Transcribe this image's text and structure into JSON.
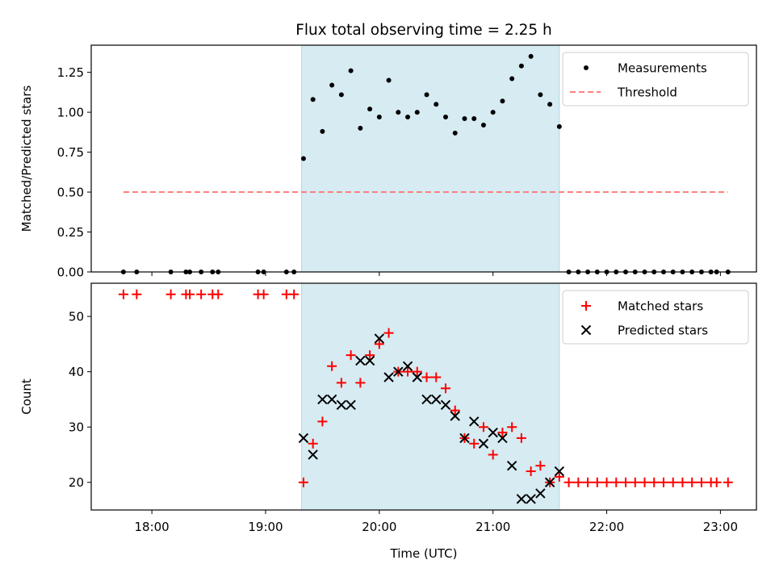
{
  "title": "Flux total observing time = 2.25 h",
  "xlabel": "Time (UTC)",
  "x_ticks": [
    "18:00",
    "19:00",
    "20:00",
    "21:00",
    "22:00",
    "23:00"
  ],
  "observing_window": {
    "start": "19:19",
    "end": "21:35",
    "color": "#add8e6"
  },
  "chart_data": [
    {
      "type": "scatter",
      "ylabel": "Matched/Predicted stars",
      "xlim": [
        "17:28",
        "23:19"
      ],
      "ylim": [
        0,
        1.42
      ],
      "y_ticks": [
        "0.00",
        "0.25",
        "0.50",
        "0.75",
        "1.00",
        "1.25"
      ],
      "legend": {
        "position": "top-right",
        "entries": [
          "Measurements",
          "Threshold"
        ]
      },
      "series": [
        {
          "name": "Measurements",
          "color": "#000000",
          "marker": "dot",
          "points": [
            [
              "17:45",
              0
            ],
            [
              "17:52",
              0
            ],
            [
              "18:10",
              0
            ],
            [
              "18:18",
              0
            ],
            [
              "18:20",
              0
            ],
            [
              "18:26",
              0
            ],
            [
              "18:32",
              0
            ],
            [
              "18:35",
              0
            ],
            [
              "18:56",
              0
            ],
            [
              "18:59",
              0
            ],
            [
              "19:11",
              0
            ],
            [
              "19:15",
              0
            ],
            [
              "19:20",
              0.71
            ],
            [
              "19:25",
              1.08
            ],
            [
              "19:30",
              0.88
            ],
            [
              "19:35",
              1.17
            ],
            [
              "19:40",
              1.11
            ],
            [
              "19:45",
              1.26
            ],
            [
              "19:50",
              0.9
            ],
            [
              "19:55",
              1.02
            ],
            [
              "20:00",
              0.97
            ],
            [
              "20:05",
              1.2
            ],
            [
              "20:10",
              1.0
            ],
            [
              "20:15",
              0.97
            ],
            [
              "20:20",
              1.0
            ],
            [
              "20:25",
              1.11
            ],
            [
              "20:30",
              1.05
            ],
            [
              "20:35",
              0.97
            ],
            [
              "20:40",
              0.87
            ],
            [
              "20:45",
              0.96
            ],
            [
              "20:50",
              0.96
            ],
            [
              "20:55",
              0.92
            ],
            [
              "21:00",
              1.0
            ],
            [
              "21:05",
              1.07
            ],
            [
              "21:10",
              1.21
            ],
            [
              "21:15",
              1.29
            ],
            [
              "21:20",
              1.35
            ],
            [
              "21:25",
              1.11
            ],
            [
              "21:30",
              1.05
            ],
            [
              "21:35",
              0.91
            ],
            [
              "21:40",
              0
            ],
            [
              "21:45",
              0
            ],
            [
              "21:50",
              0
            ],
            [
              "21:55",
              0
            ],
            [
              "22:00",
              0
            ],
            [
              "22:05",
              0
            ],
            [
              "22:10",
              0
            ],
            [
              "22:15",
              0
            ],
            [
              "22:20",
              0
            ],
            [
              "22:25",
              0
            ],
            [
              "22:30",
              0
            ],
            [
              "22:35",
              0
            ],
            [
              "22:40",
              0
            ],
            [
              "22:45",
              0
            ],
            [
              "22:50",
              0
            ],
            [
              "22:55",
              0
            ],
            [
              "22:58",
              0
            ],
            [
              "23:04",
              0
            ]
          ]
        },
        {
          "name": "Threshold",
          "color": "#ff7f7f",
          "style": "dashed",
          "points": [
            [
              "17:45",
              0.5
            ],
            [
              "23:04",
              0.5
            ]
          ]
        }
      ]
    },
    {
      "type": "scatter",
      "ylabel": "Count",
      "xlim": [
        "17:28",
        "23:19"
      ],
      "ylim": [
        15,
        56
      ],
      "y_ticks": [
        "20",
        "30",
        "40",
        "50"
      ],
      "legend": {
        "position": "top-right",
        "entries": [
          "Matched stars",
          "Predicted stars"
        ]
      },
      "series": [
        {
          "name": "Matched stars",
          "color": "#ff0000",
          "marker": "plus",
          "points": [
            [
              "17:45",
              54
            ],
            [
              "17:52",
              54
            ],
            [
              "18:10",
              54
            ],
            [
              "18:18",
              54
            ],
            [
              "18:20",
              54
            ],
            [
              "18:26",
              54
            ],
            [
              "18:32",
              54
            ],
            [
              "18:35",
              54
            ],
            [
              "18:56",
              54
            ],
            [
              "18:59",
              54
            ],
            [
              "19:11",
              54
            ],
            [
              "19:15",
              54
            ],
            [
              "19:20",
              20
            ],
            [
              "19:25",
              27
            ],
            [
              "19:30",
              31
            ],
            [
              "19:35",
              41
            ],
            [
              "19:40",
              38
            ],
            [
              "19:45",
              43
            ],
            [
              "19:50",
              38
            ],
            [
              "19:55",
              43
            ],
            [
              "20:00",
              45
            ],
            [
              "20:05",
              47
            ],
            [
              "20:10",
              40
            ],
            [
              "20:15",
              40
            ],
            [
              "20:20",
              40
            ],
            [
              "20:25",
              39
            ],
            [
              "20:30",
              39
            ],
            [
              "20:35",
              37
            ],
            [
              "20:40",
              33
            ],
            [
              "20:45",
              28
            ],
            [
              "20:50",
              27
            ],
            [
              "20:55",
              30
            ],
            [
              "21:00",
              25
            ],
            [
              "21:05",
              29
            ],
            [
              "21:10",
              30
            ],
            [
              "21:15",
              28
            ],
            [
              "21:20",
              22
            ],
            [
              "21:25",
              23
            ],
            [
              "21:30",
              20
            ],
            [
              "21:35",
              21
            ],
            [
              "21:40",
              20
            ],
            [
              "21:45",
              20
            ],
            [
              "21:50",
              20
            ],
            [
              "21:55",
              20
            ],
            [
              "22:00",
              20
            ],
            [
              "22:05",
              20
            ],
            [
              "22:10",
              20
            ],
            [
              "22:15",
              20
            ],
            [
              "22:20",
              20
            ],
            [
              "22:25",
              20
            ],
            [
              "22:30",
              20
            ],
            [
              "22:35",
              20
            ],
            [
              "22:40",
              20
            ],
            [
              "22:45",
              20
            ],
            [
              "22:50",
              20
            ],
            [
              "22:55",
              20
            ],
            [
              "22:58",
              20
            ],
            [
              "23:04",
              20
            ]
          ]
        },
        {
          "name": "Predicted stars",
          "color": "#000000",
          "marker": "x",
          "points": [
            [
              "19:20",
              28
            ],
            [
              "19:25",
              25
            ],
            [
              "19:30",
              35
            ],
            [
              "19:35",
              35
            ],
            [
              "19:40",
              34
            ],
            [
              "19:45",
              34
            ],
            [
              "19:50",
              42
            ],
            [
              "19:55",
              42
            ],
            [
              "20:00",
              46
            ],
            [
              "20:05",
              39
            ],
            [
              "20:10",
              40
            ],
            [
              "20:15",
              41
            ],
            [
              "20:20",
              39
            ],
            [
              "20:25",
              35
            ],
            [
              "20:30",
              35
            ],
            [
              "20:35",
              34
            ],
            [
              "20:40",
              32
            ],
            [
              "20:45",
              28
            ],
            [
              "20:50",
              31
            ],
            [
              "20:55",
              27
            ],
            [
              "21:00",
              29
            ],
            [
              "21:05",
              28
            ],
            [
              "21:10",
              23
            ],
            [
              "21:15",
              17
            ],
            [
              "21:20",
              17
            ],
            [
              "21:25",
              18
            ],
            [
              "21:30",
              20
            ],
            [
              "21:35",
              22
            ]
          ]
        }
      ]
    }
  ]
}
